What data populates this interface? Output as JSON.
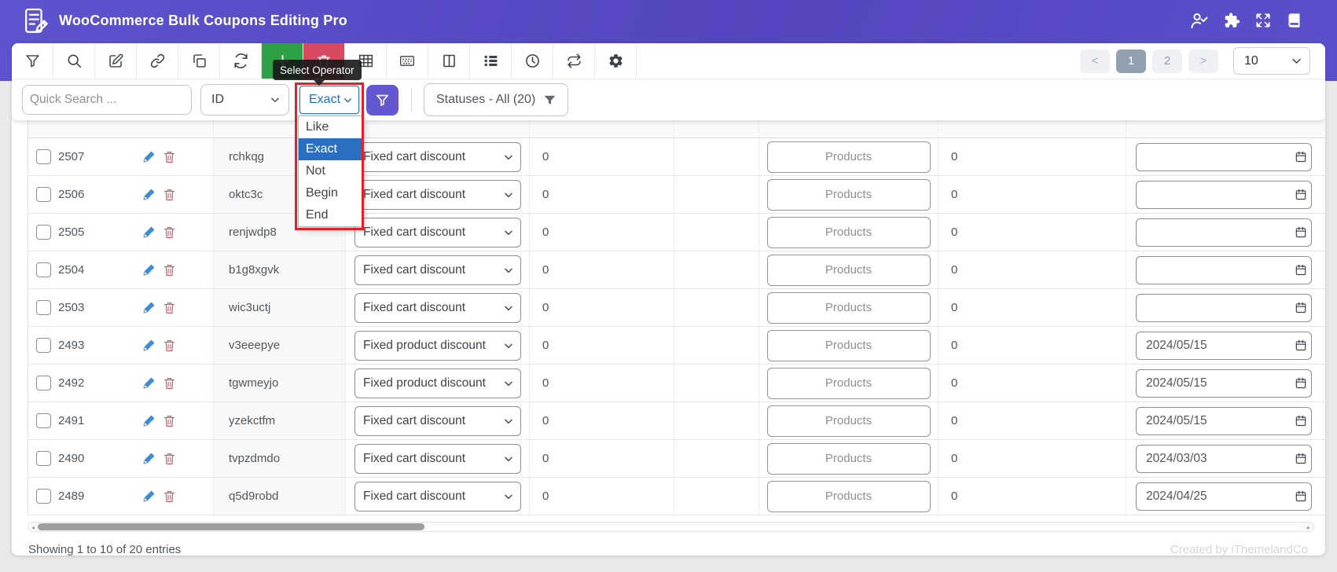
{
  "header": {
    "title": "WooCommerce Bulk Coupons Editing Pro",
    "icons": [
      "user-check",
      "puzzle",
      "fullscreen",
      "documentation"
    ]
  },
  "toolbar": {
    "tools": [
      "filter",
      "search",
      "bulk-edit",
      "bind-edit",
      "duplicate",
      "reload",
      "add-new",
      "delete",
      "column-manager",
      "inline-edit",
      "columns",
      "list",
      "history",
      "sync",
      "settings"
    ],
    "tooltip": "Select Operator",
    "pagination": {
      "prev": "<",
      "pages": [
        "1",
        "2"
      ],
      "active_page": "1",
      "next": ">",
      "page_size": "10"
    }
  },
  "filters": {
    "search_placeholder": "Quick Search ...",
    "field_selected": "ID",
    "operator_selected": "Exact",
    "operator_options": [
      "Like",
      "Exact",
      "Not",
      "Begin",
      "End"
    ],
    "statuses_label": "Statuses - All (20)"
  },
  "table": {
    "rows": [
      {
        "id": "2507",
        "code": "rchkqg",
        "type": "Fixed cart discount",
        "amount": "0",
        "products_label": "Products",
        "used": "0",
        "expiry": ""
      },
      {
        "id": "2506",
        "code": "oktc3c",
        "type": "Fixed cart discount",
        "amount": "0",
        "products_label": "Products",
        "used": "0",
        "expiry": ""
      },
      {
        "id": "2505",
        "code": "renjwdp8",
        "type": "Fixed cart discount",
        "amount": "0",
        "products_label": "Products",
        "used": "0",
        "expiry": ""
      },
      {
        "id": "2504",
        "code": "b1g8xgvk",
        "type": "Fixed cart discount",
        "amount": "0",
        "products_label": "Products",
        "used": "0",
        "expiry": ""
      },
      {
        "id": "2503",
        "code": "wic3uctj",
        "type": "Fixed cart discount",
        "amount": "0",
        "products_label": "Products",
        "used": "0",
        "expiry": ""
      },
      {
        "id": "2493",
        "code": "v3eeepye",
        "type": "Fixed product discount",
        "amount": "0",
        "products_label": "Products",
        "used": "0",
        "expiry": "2024/05/15"
      },
      {
        "id": "2492",
        "code": "tgwmeyjo",
        "type": "Fixed product discount",
        "amount": "0",
        "products_label": "Products",
        "used": "0",
        "expiry": "2024/05/15"
      },
      {
        "id": "2491",
        "code": "yzekctfm",
        "type": "Fixed cart discount",
        "amount": "0",
        "products_label": "Products",
        "used": "0",
        "expiry": "2024/05/15"
      },
      {
        "id": "2490",
        "code": "tvpzdmdo",
        "type": "Fixed cart discount",
        "amount": "0",
        "products_label": "Products",
        "used": "0",
        "expiry": "2024/03/03"
      },
      {
        "id": "2489",
        "code": "q5d9robd",
        "type": "Fixed cart discount",
        "amount": "0",
        "products_label": "Products",
        "used": "0",
        "expiry": "2024/04/25"
      }
    ]
  },
  "footer": {
    "showing": "Showing 1 to 10 of 20 entries",
    "credit": "Created by iThemelandCo"
  },
  "colors": {
    "header_purple": "#5a4ec5",
    "accent_purple": "#6358d0",
    "add_green": "#2ea144",
    "delete_red": "#d9485e",
    "annotation_red": "#e4212b",
    "operator_blue": "#2271b1",
    "option_selected_blue": "#2a6fc2",
    "pagination_active": "#92a0b0"
  }
}
